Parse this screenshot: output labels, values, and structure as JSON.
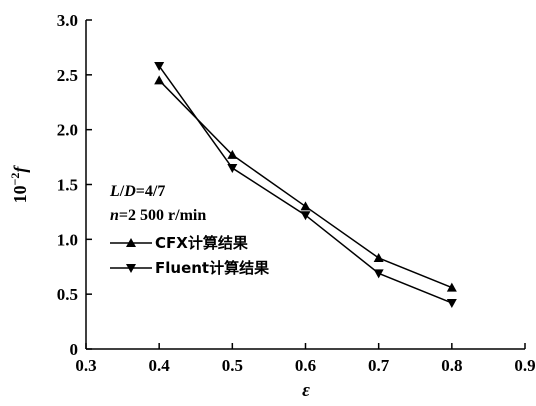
{
  "chart_data": {
    "type": "line",
    "xlabel": "ε",
    "ylabel_base": "10",
    "ylabel_exp": "−2",
    "ylabel_var": "f",
    "xlim": [
      0.3,
      0.9
    ],
    "ylim": [
      0,
      3.0
    ],
    "xticks": [
      0.3,
      0.4,
      0.5,
      0.6,
      0.7,
      0.8,
      0.9
    ],
    "xtick_labels": [
      "0.3",
      "0.4",
      "0.5",
      "0.6",
      "0.7",
      "0.8",
      "0.9"
    ],
    "yticks": [
      0,
      0.5,
      1.0,
      1.5,
      2.0,
      2.5,
      3.0
    ],
    "ytick_labels": [
      "0",
      "0.5",
      "1.0",
      "1.5",
      "2.0",
      "2.5",
      "3.0"
    ],
    "grid": false,
    "legend_position": "left-middle",
    "annotation": {
      "line1_italic": "L",
      "line1_slash": "/",
      "line1_italic2": "D",
      "line1_value": "=4/7",
      "line2_italic": "n",
      "line2_value": "=2 500 r/min"
    },
    "series": [
      {
        "name": "CFX计算结果",
        "marker": "triangle-up",
        "x": [
          0.4,
          0.5,
          0.6,
          0.7,
          0.8
        ],
        "y": [
          2.45,
          1.77,
          1.3,
          0.83,
          0.56
        ]
      },
      {
        "name": "Fluent计算结果",
        "marker": "triangle-down",
        "x": [
          0.4,
          0.5,
          0.6,
          0.7,
          0.8
        ],
        "y": [
          2.58,
          1.65,
          1.22,
          0.69,
          0.42
        ]
      }
    ],
    "color": "#000000"
  }
}
